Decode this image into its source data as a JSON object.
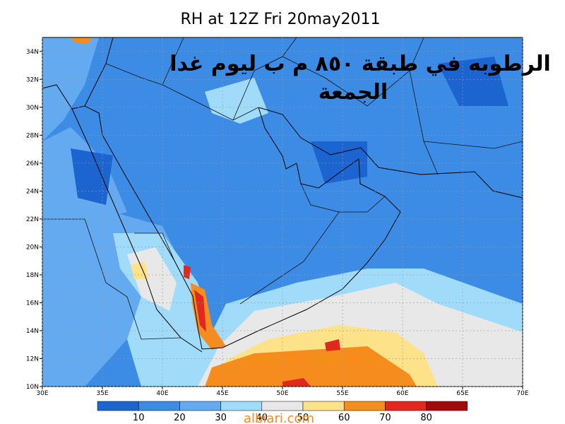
{
  "map": {
    "title": "RH at 12Z Fri 20may2011",
    "annotation_line1": "الرطوبه في طبقة ٨٥٠ م ب ليوم غدا",
    "annotation_line2": "الجمعة",
    "xlim": [
      30,
      70
    ],
    "ylim": [
      10,
      35
    ],
    "xticks": [
      {
        "value": 30,
        "label": "30E"
      },
      {
        "value": 35,
        "label": "35E"
      },
      {
        "value": 40,
        "label": "40E"
      },
      {
        "value": 45,
        "label": "45E"
      },
      {
        "value": 50,
        "label": "50E"
      },
      {
        "value": 55,
        "label": "55E"
      },
      {
        "value": 60,
        "label": "60E"
      },
      {
        "value": 65,
        "label": "65E"
      },
      {
        "value": 70,
        "label": "70E"
      }
    ],
    "yticks": [
      {
        "value": 10,
        "label": "10N"
      },
      {
        "value": 12,
        "label": "12N"
      },
      {
        "value": 14,
        "label": "14N"
      },
      {
        "value": 16,
        "label": "16N"
      },
      {
        "value": 18,
        "label": "18N"
      },
      {
        "value": 20,
        "label": "20N"
      },
      {
        "value": 22,
        "label": "22N"
      },
      {
        "value": 24,
        "label": "24N"
      },
      {
        "value": 26,
        "label": "26N"
      },
      {
        "value": 28,
        "label": "28N"
      },
      {
        "value": 30,
        "label": "30N"
      },
      {
        "value": 32,
        "label": "32N"
      },
      {
        "value": 34,
        "label": "34N"
      }
    ],
    "colorbar_levels": [
      10,
      20,
      30,
      40,
      50,
      60,
      70,
      80
    ],
    "colorbar_colors": [
      "#1c64d0",
      "#3c8ce6",
      "#64aaf0",
      "#a0dcfa",
      "#e8e8e8",
      "#fde28a",
      "#f78c1e",
      "#e0281e",
      "#a00a0a"
    ],
    "watermark": "albiari.com"
  }
}
